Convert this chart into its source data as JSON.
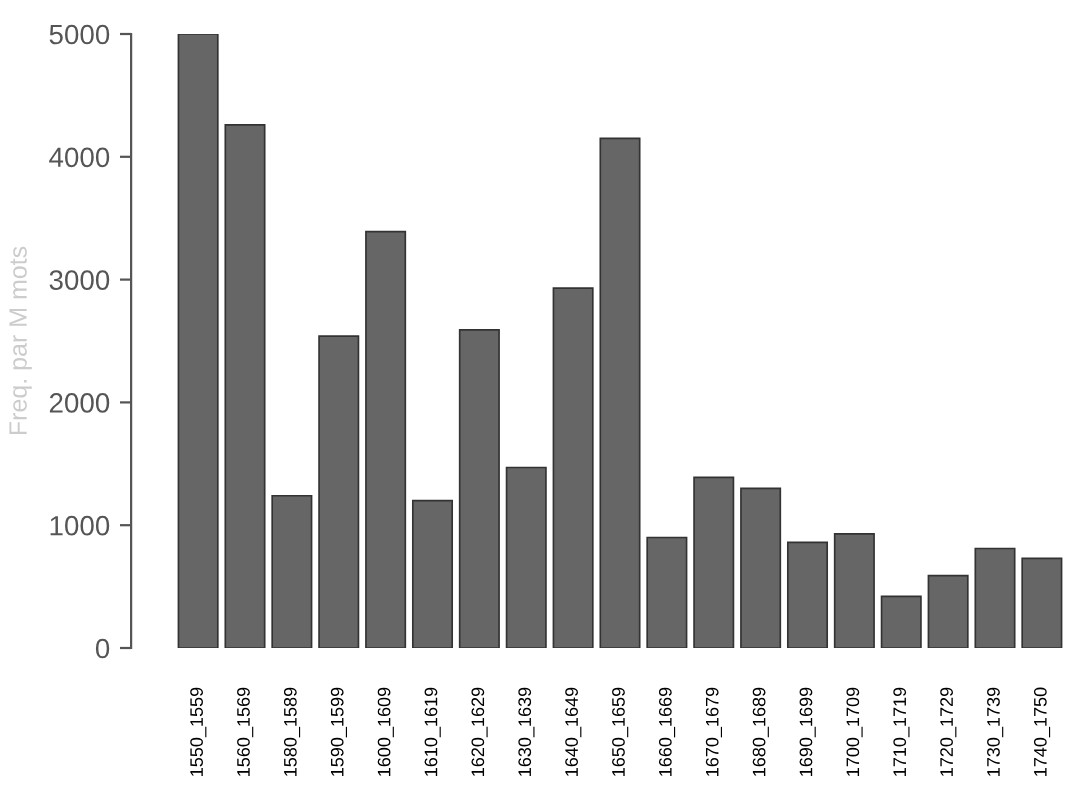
{
  "chart_data": {
    "type": "bar",
    "ylabel": "Freq. par M mots",
    "categories": [
      "1550_1559",
      "1560_1569",
      "1580_1589",
      "1590_1599",
      "1600_1609",
      "1610_1619",
      "1620_1629",
      "1630_1639",
      "1640_1649",
      "1650_1659",
      "1660_1669",
      "1670_1679",
      "1680_1689",
      "1690_1699",
      "1700_1709",
      "1710_1719",
      "1720_1729",
      "1730_1739",
      "1740_1750"
    ],
    "values": [
      5000,
      4260,
      1240,
      2540,
      3390,
      1200,
      2590,
      1470,
      2930,
      4150,
      900,
      1390,
      1300,
      860,
      930,
      420,
      590,
      810,
      730
    ],
    "color": "#666666",
    "ylim": [
      0,
      5000
    ],
    "yticks": [
      0,
      1000,
      2000,
      3000,
      4000,
      5000
    ],
    "grid": false,
    "legend": false
  }
}
